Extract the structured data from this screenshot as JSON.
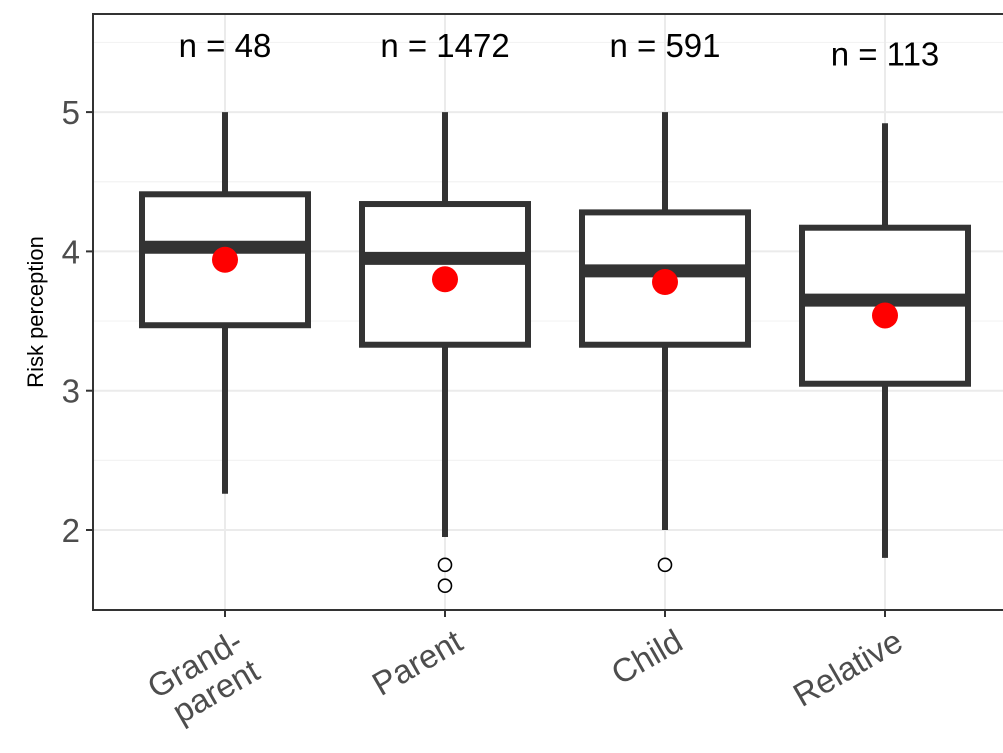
{
  "chart_data": {
    "type": "box",
    "ylabel": "Risk perception",
    "xlabel": "",
    "ylim": [
      1.4,
      5.65
    ],
    "yticks": [
      2,
      3,
      4,
      5
    ],
    "y_minor_ticks": [
      2.5,
      3.5,
      4.5,
      5.5
    ],
    "grid": true,
    "categories": [
      "Grand-\nparent",
      "Parent",
      "Child",
      "Relative"
    ],
    "category_labels": [
      [
        "Grand-",
        "parent"
      ],
      [
        "Parent"
      ],
      [
        "Child"
      ],
      [
        "Relative"
      ]
    ],
    "boxes": [
      {
        "whisker_low": 2.26,
        "q1": 3.47,
        "median": 4.03,
        "q3": 4.41,
        "whisker_high": 5.0,
        "mean": 3.94,
        "outliers": [],
        "n_label": "n = 48"
      },
      {
        "whisker_low": 1.95,
        "q1": 3.33,
        "median": 3.95,
        "q3": 4.34,
        "whisker_high": 5.0,
        "mean": 3.8,
        "outliers": [
          1.75,
          1.6
        ],
        "n_label": "n = 1472"
      },
      {
        "whisker_low": 2.0,
        "q1": 3.33,
        "median": 3.86,
        "q3": 4.28,
        "whisker_high": 5.0,
        "mean": 3.78,
        "outliers": [
          1.75
        ],
        "n_label": "n = 591"
      },
      {
        "whisker_low": 1.8,
        "q1": 3.05,
        "median": 3.65,
        "q3": 4.17,
        "whisker_high": 4.92,
        "mean": 3.54,
        "outliers": [],
        "n_label": "n = 113"
      }
    ],
    "n_label_y": [
      5.48,
      5.48,
      5.48,
      5.42
    ],
    "colors": {
      "box_line": "#333333",
      "mean_point": "#ff0000",
      "grid": "#ebebeb"
    }
  }
}
